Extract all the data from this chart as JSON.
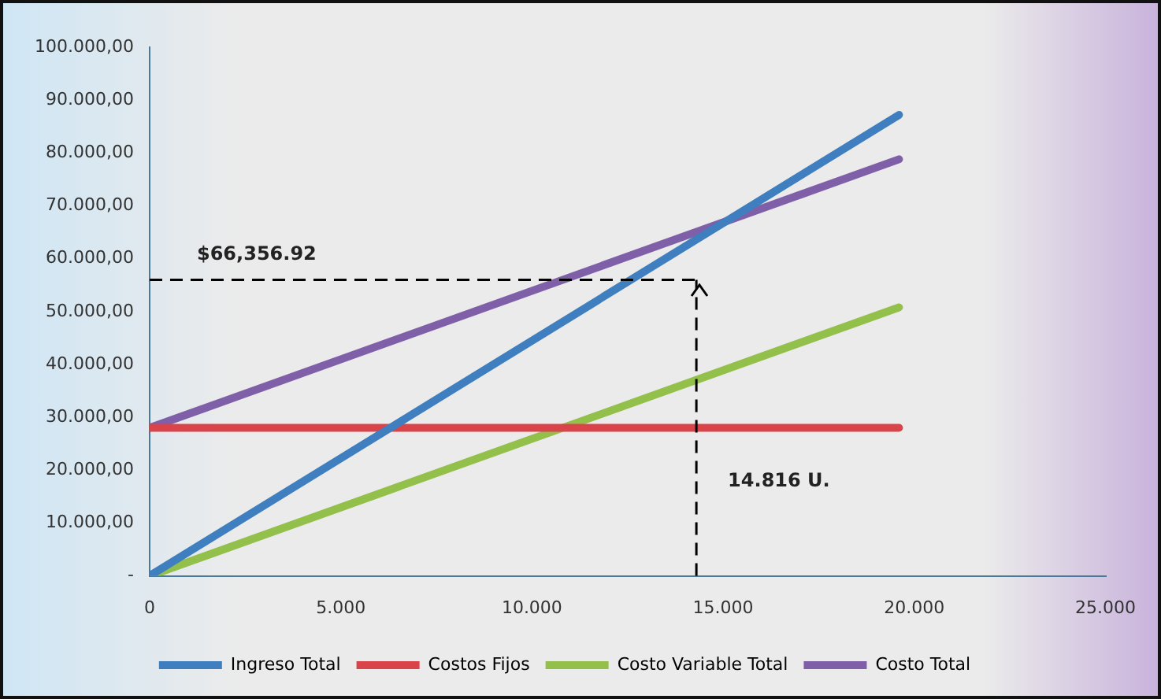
{
  "chart_data": {
    "type": "line",
    "x": [
      0,
      19600
    ],
    "series": [
      {
        "name": "Ingreso Total",
        "color": "#3f7fbf",
        "values": [
          0,
          87200
        ]
      },
      {
        "name": "Costos Fijos",
        "color": "#d9434a",
        "values": [
          28000,
          28000
        ]
      },
      {
        "name": "Costo Variable Total",
        "color": "#92c04a",
        "values": [
          0,
          50800
        ]
      },
      {
        "name": "Costo Total",
        "color": "#7f5fa8",
        "values": [
          28000,
          78800
        ]
      }
    ],
    "xlim": [
      0,
      25000
    ],
    "xticks": [
      0,
      {
        "value": 5000,
        "label": "5.000"
      },
      {
        "value": 10000,
        "label": "10.000"
      },
      {
        "value": 15000,
        "label": "15.000"
      },
      {
        "value": 20000,
        "label": "20.000"
      },
      {
        "value": 25000,
        "label": "25.000"
      }
    ],
    "ylim": [
      0,
      100000
    ],
    "yticks": [
      {
        "value": 0,
        "label": "-"
      },
      {
        "value": 10000,
        "label": "10.000,00"
      },
      {
        "value": 20000,
        "label": "20.000,00"
      },
      {
        "value": 30000,
        "label": "30.000,00"
      },
      {
        "value": 40000,
        "label": "40.000,00"
      },
      {
        "value": 50000,
        "label": "50.000,00"
      },
      {
        "value": 60000,
        "label": "60.000,00"
      },
      {
        "value": 70000,
        "label": "70.000,00"
      },
      {
        "value": 80000,
        "label": "80.000,00"
      },
      {
        "value": 90000,
        "label": "90.000,00"
      },
      {
        "value": 100000,
        "label": "100.000,00"
      }
    ],
    "ref_lines": [
      {
        "axis": "x",
        "value": 14300,
        "color": "#000000",
        "line_style": "dashed"
      },
      {
        "axis": "y",
        "value": 56000,
        "color": "#000000",
        "line_style": "dashed"
      }
    ],
    "annotations": [
      "$66,356.92",
      "14.816 U."
    ],
    "grid": false,
    "legend": "bottom",
    "marker": "none",
    "line_style": "solid"
  }
}
